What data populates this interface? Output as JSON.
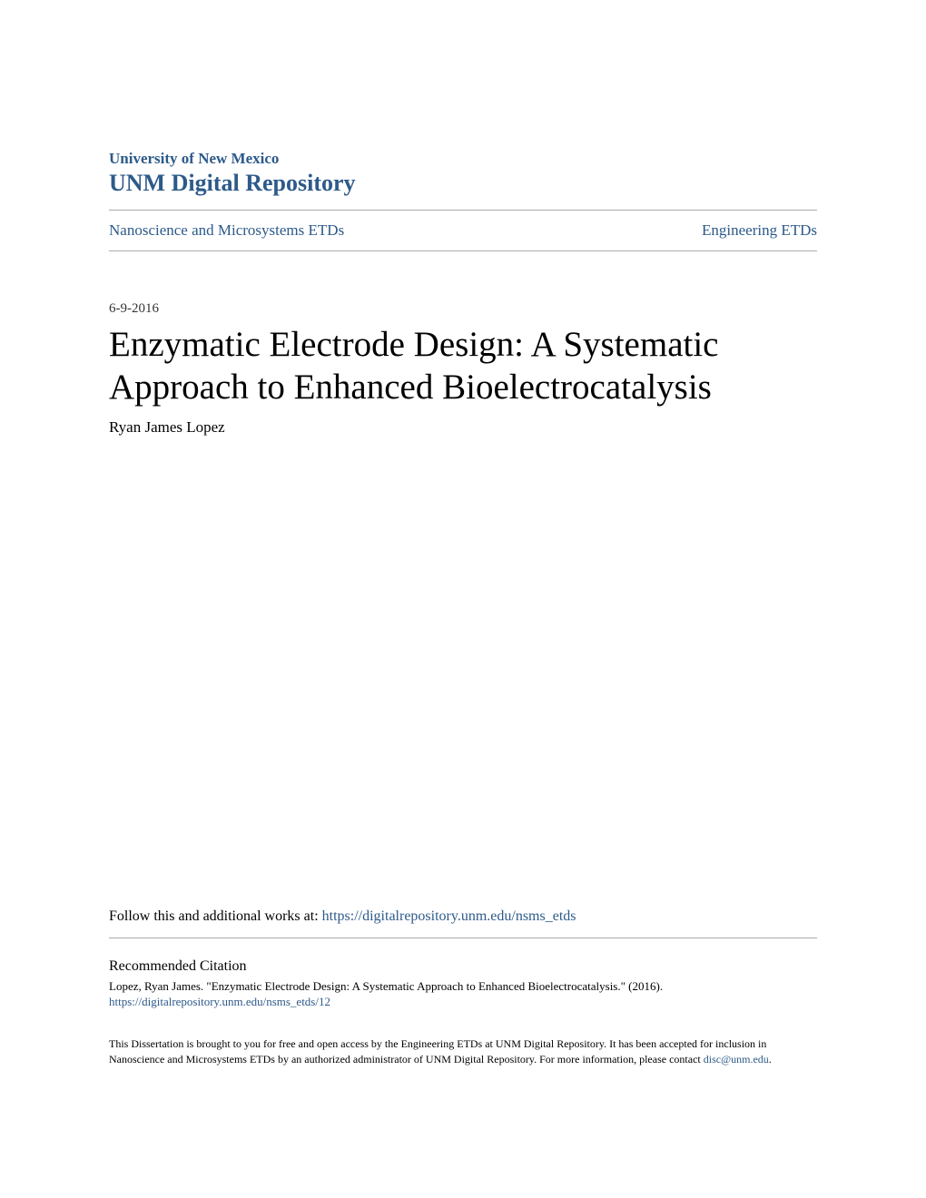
{
  "header": {
    "institution": "University of New Mexico",
    "repository": "UNM Digital Repository"
  },
  "breadcrumb": {
    "left": "Nanoscience and Microsystems ETDs",
    "right": "Engineering ETDs"
  },
  "date": "6-9-2016",
  "title": "Enzymatic Electrode Design: A Systematic Approach to Enhanced Bioelectrocatalysis",
  "author": "Ryan James Lopez",
  "follow": {
    "prefix": "Follow this and additional works at: ",
    "url": "https://digitalrepository.unm.edu/nsms_etds"
  },
  "citation": {
    "heading": "Recommended Citation",
    "text": "Lopez, Ryan James. \"Enzymatic Electrode Design: A Systematic Approach to Enhanced Bioelectrocatalysis.\" (2016).",
    "url": "https://digitalrepository.unm.edu/nsms_etds/12"
  },
  "footer": {
    "text": "This Dissertation is brought to you for free and open access by the Engineering ETDs at UNM Digital Repository. It has been accepted for inclusion in Nanoscience and Microsystems ETDs by an authorized administrator of UNM Digital Repository. For more information, please contact ",
    "email": "disc@unm.edu",
    "suffix": "."
  },
  "colors": {
    "link": "#2d5a8a",
    "text": "#000000",
    "divider": "#aaaaaa",
    "background": "#ffffff"
  }
}
